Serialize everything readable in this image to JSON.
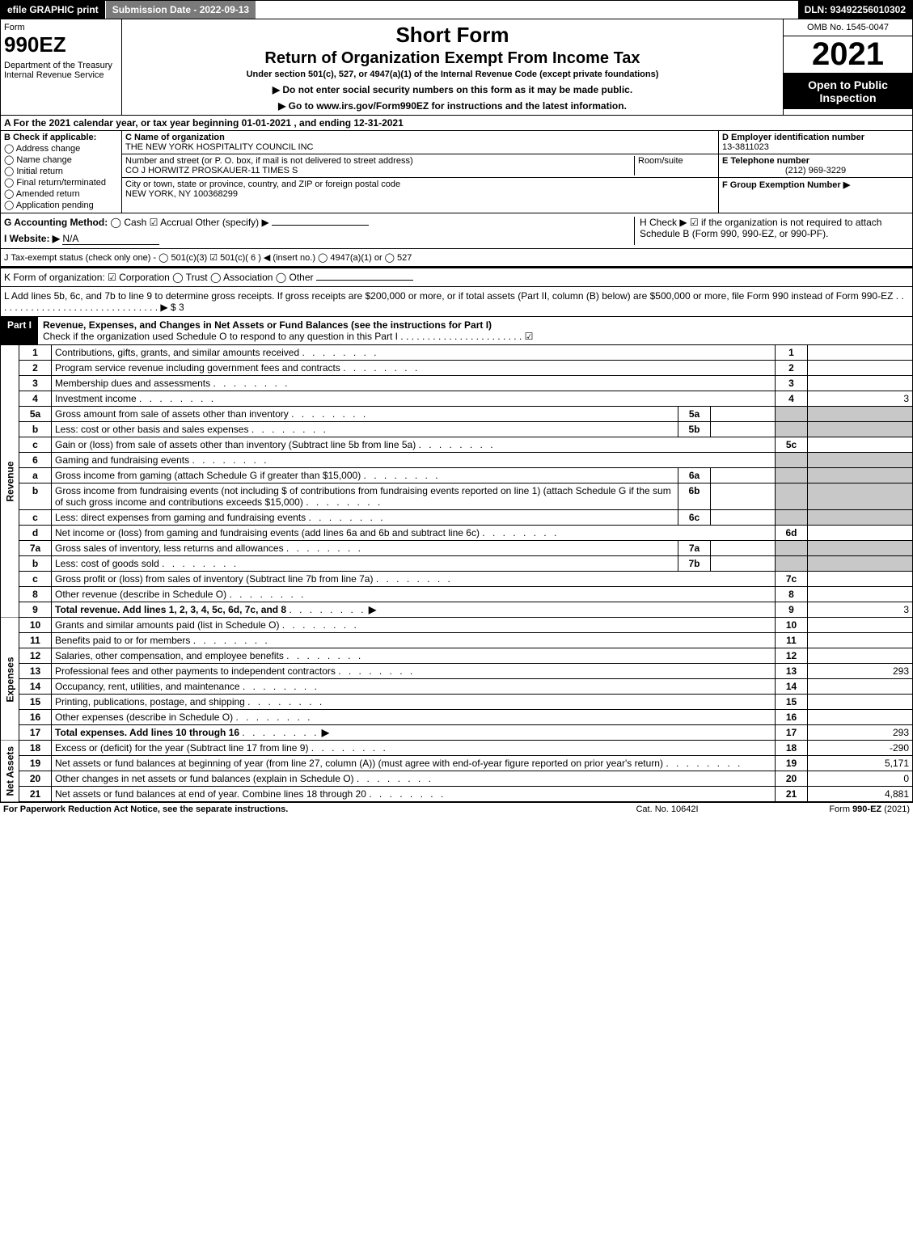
{
  "topbar": {
    "efile": "efile GRAPHIC print",
    "submission": "Submission Date - 2022-09-13",
    "dln": "DLN: 93492256010302"
  },
  "header": {
    "form_word": "Form",
    "form_num": "990EZ",
    "dept": "Department of the Treasury\nInternal Revenue Service",
    "title1": "Short Form",
    "title2": "Return of Organization Exempt From Income Tax",
    "sub1": "Under section 501(c), 527, or 4947(a)(1) of the Internal Revenue Code (except private foundations)",
    "sub2a": "▶ Do not enter social security numbers on this form as it may be made public.",
    "sub2b": "▶ Go to www.irs.gov/Form990EZ for instructions and the latest information.",
    "omb": "OMB No. 1545-0047",
    "year": "2021",
    "inspect": "Open to Public Inspection"
  },
  "line_a": "A  For the 2021 calendar year, or tax year beginning 01-01-2021 , and ending 12-31-2021",
  "section_b": {
    "label": "B  Check if applicable:",
    "opts": [
      "Address change",
      "Name change",
      "Initial return",
      "Final return/terminated",
      "Amended return",
      "Application pending"
    ]
  },
  "section_c": {
    "name_lbl": "C Name of organization",
    "name": "THE NEW YORK HOSPITALITY COUNCIL INC",
    "street_lbl": "Number and street (or P. O. box, if mail is not delivered to street address)",
    "room_lbl": "Room/suite",
    "street": "CO J HORWITZ PROSKAUER-11 TIMES S",
    "city_lbl": "City or town, state or province, country, and ZIP or foreign postal code",
    "city": "NEW YORK, NY  100368299"
  },
  "section_d": {
    "ein_lbl": "D Employer identification number",
    "ein": "13-3811023",
    "tel_lbl": "E Telephone number",
    "tel": "(212) 969-3229",
    "grp_lbl": "F Group Exemption Number  ▶"
  },
  "g": {
    "label": "G Accounting Method:",
    "cash": "Cash",
    "accrual": "Accrual",
    "other": "Other (specify) ▶"
  },
  "h": "H  Check ▶ ☑ if the organization is not required to attach Schedule B (Form 990, 990-EZ, or 990-PF).",
  "i": {
    "label": "I Website: ▶",
    "val": "N/A"
  },
  "j": "J Tax-exempt status (check only one) - ◯ 501(c)(3)  ☑ 501(c)( 6 ) ◀ (insert no.)  ◯ 4947(a)(1) or  ◯ 527",
  "k": "K Form of organization:  ☑ Corporation  ◯ Trust  ◯ Association  ◯ Other",
  "l": "L Add lines 5b, 6c, and 7b to line 9 to determine gross receipts. If gross receipts are $200,000 or more, or if total assets (Part II, column (B) below) are $500,000 or more, file Form 990 instead of Form 990-EZ  . . . . . . . . . . . . . . . . . . . . . . . . . . . . . . .  ▶ $ 3",
  "part1": {
    "label": "Part I",
    "title": "Revenue, Expenses, and Changes in Net Assets or Fund Balances (see the instructions for Part I)",
    "check": "Check if the organization used Schedule O to respond to any question in this Part I . . . . . . . . . . . . . . . . . . . . . . .  ☑"
  },
  "sidelabels": {
    "revenue": "Revenue",
    "expenses": "Expenses",
    "netassets": "Net Assets"
  },
  "rows": [
    {
      "n": "1",
      "d": "Contributions, gifts, grants, and similar amounts received",
      "rn": "1",
      "rv": ""
    },
    {
      "n": "2",
      "d": "Program service revenue including government fees and contracts",
      "rn": "2",
      "rv": ""
    },
    {
      "n": "3",
      "d": "Membership dues and assessments",
      "rn": "3",
      "rv": ""
    },
    {
      "n": "4",
      "d": "Investment income",
      "rn": "4",
      "rv": "3"
    },
    {
      "n": "5a",
      "d": "Gross amount from sale of assets other than inventory",
      "mn": "5a",
      "mv": "",
      "grey": true
    },
    {
      "n": "b",
      "d": "Less: cost or other basis and sales expenses",
      "mn": "5b",
      "mv": "",
      "grey": true
    },
    {
      "n": "c",
      "d": "Gain or (loss) from sale of assets other than inventory (Subtract line 5b from line 5a)",
      "rn": "5c",
      "rv": ""
    },
    {
      "n": "6",
      "d": "Gaming and fundraising events",
      "grey": true
    },
    {
      "n": "a",
      "d": "Gross income from gaming (attach Schedule G if greater than $15,000)",
      "mn": "6a",
      "mv": "",
      "grey": true
    },
    {
      "n": "b",
      "d": "Gross income from fundraising events (not including $                   of contributions from fundraising events reported on line 1) (attach Schedule G if the sum of such gross income and contributions exceeds $15,000)",
      "mn": "6b",
      "mv": "",
      "grey": true
    },
    {
      "n": "c",
      "d": "Less: direct expenses from gaming and fundraising events",
      "mn": "6c",
      "mv": "",
      "grey": true
    },
    {
      "n": "d",
      "d": "Net income or (loss) from gaming and fundraising events (add lines 6a and 6b and subtract line 6c)",
      "rn": "6d",
      "rv": ""
    },
    {
      "n": "7a",
      "d": "Gross sales of inventory, less returns and allowances",
      "mn": "7a",
      "mv": "",
      "grey": true
    },
    {
      "n": "b",
      "d": "Less: cost of goods sold",
      "mn": "7b",
      "mv": "",
      "grey": true
    },
    {
      "n": "c",
      "d": "Gross profit or (loss) from sales of inventory (Subtract line 7b from line 7a)",
      "rn": "7c",
      "rv": ""
    },
    {
      "n": "8",
      "d": "Other revenue (describe in Schedule O)",
      "rn": "8",
      "rv": ""
    },
    {
      "n": "9",
      "d": "Total revenue. Add lines 1, 2, 3, 4, 5c, 6d, 7c, and 8",
      "rn": "9",
      "rv": "3",
      "bold": true,
      "arrow": true
    }
  ],
  "rows_exp": [
    {
      "n": "10",
      "d": "Grants and similar amounts paid (list in Schedule O)",
      "rn": "10",
      "rv": ""
    },
    {
      "n": "11",
      "d": "Benefits paid to or for members",
      "rn": "11",
      "rv": ""
    },
    {
      "n": "12",
      "d": "Salaries, other compensation, and employee benefits",
      "rn": "12",
      "rv": ""
    },
    {
      "n": "13",
      "d": "Professional fees and other payments to independent contractors",
      "rn": "13",
      "rv": "293"
    },
    {
      "n": "14",
      "d": "Occupancy, rent, utilities, and maintenance",
      "rn": "14",
      "rv": ""
    },
    {
      "n": "15",
      "d": "Printing, publications, postage, and shipping",
      "rn": "15",
      "rv": ""
    },
    {
      "n": "16",
      "d": "Other expenses (describe in Schedule O)",
      "rn": "16",
      "rv": ""
    },
    {
      "n": "17",
      "d": "Total expenses. Add lines 10 through 16",
      "rn": "17",
      "rv": "293",
      "bold": true,
      "arrow": true
    }
  ],
  "rows_net": [
    {
      "n": "18",
      "d": "Excess or (deficit) for the year (Subtract line 17 from line 9)",
      "rn": "18",
      "rv": "-290"
    },
    {
      "n": "19",
      "d": "Net assets or fund balances at beginning of year (from line 27, column (A)) (must agree with end-of-year figure reported on prior year's return)",
      "rn": "19",
      "rv": "5,171"
    },
    {
      "n": "20",
      "d": "Other changes in net assets or fund balances (explain in Schedule O)",
      "rn": "20",
      "rv": "0"
    },
    {
      "n": "21",
      "d": "Net assets or fund balances at end of year. Combine lines 18 through 20",
      "rn": "21",
      "rv": "4,881"
    }
  ],
  "footer": {
    "left": "For Paperwork Reduction Act Notice, see the separate instructions.",
    "center": "Cat. No. 10642I",
    "right": "Form 990-EZ (2021)"
  }
}
